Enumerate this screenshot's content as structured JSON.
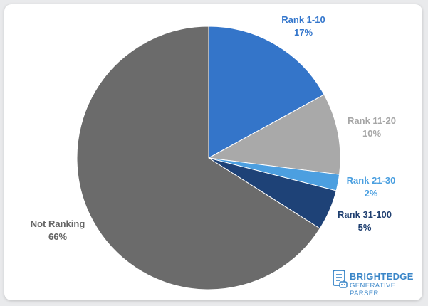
{
  "chart_data": {
    "type": "pie",
    "title": "",
    "slices": [
      {
        "name": "Rank 1-10",
        "percent_label": "17%",
        "value": 17,
        "color": "#3475c9",
        "label_color": "#3577cc"
      },
      {
        "name": "Rank 11-20",
        "percent_label": "10%",
        "value": 10,
        "color": "#a9a9a9",
        "label_color": "#a6a6a6"
      },
      {
        "name": "Rank 21-30",
        "percent_label": "2%",
        "value": 2,
        "color": "#4c9fe0",
        "label_color": "#4a9fe0"
      },
      {
        "name": "Rank 31-100",
        "percent_label": "5%",
        "value": 5,
        "color": "#1e4277",
        "label_color": "#1f3f70"
      },
      {
        "name": "Not Ranking",
        "percent_label": "66%",
        "value": 66,
        "color": "#6b6b6b",
        "label_color": "#666666"
      }
    ],
    "start": "12 o'clock",
    "direction": "clockwise",
    "legend": "none (direct labels)"
  },
  "branding": {
    "line1": "BRIGHTEDGE",
    "line2": "GENERATIVE PARSER",
    "icon": "document-robot-icon",
    "color": "#3a86c8"
  }
}
